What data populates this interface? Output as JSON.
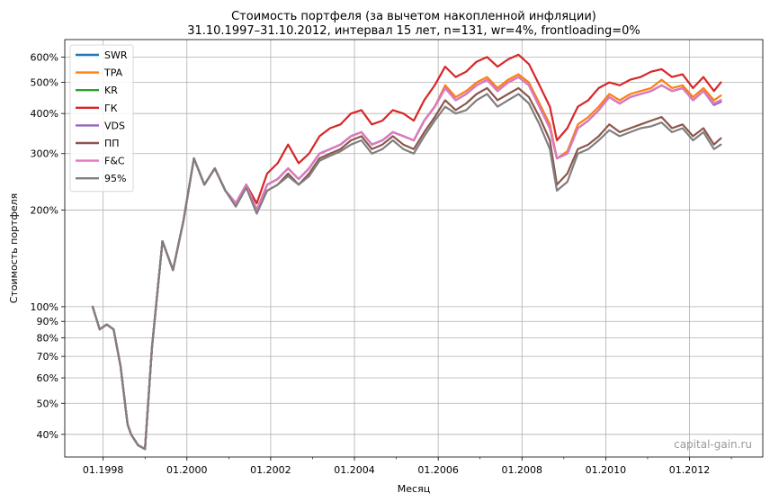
{
  "chart_data": {
    "type": "line",
    "title": "Стоимость портфеля (за вычетом накопленной инфляции)",
    "subtitle": "31.10.1997–31.10.2012, интервал 15 лет, n=131, wr=4%, frontloading=0%",
    "xlabel": "Месяц",
    "ylabel": "Стоимость портфеля",
    "y_scale": "log",
    "xlim": [
      "1997-02",
      "2013-10"
    ],
    "x_ticks": [
      "01.1998",
      "01.2000",
      "01.2002",
      "01.2004",
      "01.2006",
      "01.2008",
      "01.2010",
      "01.2012"
    ],
    "y_ticks": [
      "40%",
      "50%",
      "60%",
      "70%",
      "80%",
      "90%",
      "100%",
      "200%",
      "300%",
      "400%",
      "500%",
      "600%"
    ],
    "grid": true,
    "legend_position": "top-left",
    "watermark": "capital-gain.ru",
    "dates": [
      "1997-10",
      "1997-12",
      "1998-02",
      "1998-04",
      "1998-06",
      "1998-08",
      "1998-09",
      "1998-11",
      "1999-01",
      "1999-03",
      "1999-06",
      "1999-09",
      "1999-12",
      "2000-03",
      "2000-06",
      "2000-09",
      "2000-12",
      "2001-03",
      "2001-06",
      "2001-09",
      "2001-12",
      "2002-03",
      "2002-06",
      "2002-09",
      "2002-12",
      "2003-03",
      "2003-06",
      "2003-09",
      "2003-12",
      "2004-03",
      "2004-06",
      "2004-09",
      "2004-12",
      "2005-03",
      "2005-06",
      "2005-09",
      "2005-12",
      "2006-03",
      "2006-06",
      "2006-09",
      "2006-12",
      "2007-03",
      "2007-06",
      "2007-09",
      "2007-12",
      "2008-03",
      "2008-06",
      "2008-09",
      "2008-11",
      "2009-02",
      "2009-05",
      "2009-08",
      "2009-11",
      "2010-02",
      "2010-05",
      "2010-08",
      "2010-11",
      "2011-02",
      "2011-05",
      "2011-08",
      "2011-11",
      "2012-02",
      "2012-05",
      "2012-08",
      "2012-10"
    ],
    "series": [
      {
        "name": "SWR",
        "color": "#1f77b4",
        "values": [
          100,
          85,
          88,
          85,
          65,
          43,
          40,
          37,
          36,
          75,
          160,
          130,
          185,
          290,
          240,
          270,
          230,
          210,
          240,
          200,
          240,
          250,
          270,
          250,
          270,
          300,
          310,
          320,
          340,
          350,
          320,
          330,
          350,
          340,
          330,
          380,
          420,
          480,
          440,
          460,
          490,
          510,
          470,
          500,
          520,
          490,
          420,
          360,
          290,
          300,
          360,
          380,
          410,
          450,
          430,
          450,
          460,
          470,
          490,
          470,
          480,
          440,
          470,
          430,
          440
        ]
      },
      {
        "name": "TPA",
        "color": "#ff7f0e",
        "values": [
          100,
          85,
          88,
          85,
          65,
          43,
          40,
          37,
          36,
          75,
          160,
          130,
          185,
          290,
          240,
          270,
          230,
          210,
          240,
          200,
          240,
          250,
          270,
          250,
          270,
          300,
          310,
          320,
          340,
          350,
          320,
          330,
          350,
          340,
          330,
          380,
          420,
          490,
          450,
          470,
          500,
          520,
          480,
          510,
          530,
          500,
          430,
          370,
          290,
          305,
          370,
          390,
          420,
          460,
          440,
          460,
          470,
          480,
          510,
          480,
          490,
          450,
          480,
          440,
          455
        ]
      },
      {
        "name": "KR",
        "color": "#2ca02c",
        "values": [
          100,
          85,
          88,
          85,
          65,
          43,
          40,
          37,
          36,
          75,
          160,
          130,
          185,
          290,
          240,
          270,
          230,
          210,
          240,
          200,
          240,
          250,
          270,
          250,
          270,
          300,
          310,
          320,
          340,
          350,
          320,
          330,
          350,
          340,
          330,
          380,
          420,
          480,
          440,
          460,
          490,
          510,
          470,
          500,
          520,
          490,
          420,
          360,
          290,
          300,
          360,
          380,
          410,
          450,
          430,
          450,
          460,
          470,
          490,
          470,
          480,
          440,
          470,
          430,
          440
        ]
      },
      {
        "name": "ГК",
        "color": "#d62728",
        "values": [
          100,
          85,
          88,
          85,
          65,
          43,
          40,
          37,
          36,
          75,
          160,
          130,
          185,
          290,
          240,
          270,
          230,
          210,
          240,
          210,
          260,
          280,
          320,
          280,
          300,
          340,
          360,
          370,
          400,
          410,
          370,
          380,
          410,
          400,
          380,
          440,
          490,
          560,
          520,
          540,
          580,
          600,
          560,
          590,
          610,
          570,
          490,
          420,
          330,
          360,
          420,
          440,
          480,
          500,
          490,
          510,
          520,
          540,
          550,
          520,
          530,
          480,
          520,
          470,
          500
        ]
      },
      {
        "name": "VDS",
        "color": "#9467bd",
        "values": [
          100,
          85,
          88,
          85,
          65,
          43,
          40,
          37,
          36,
          75,
          160,
          130,
          185,
          290,
          240,
          270,
          230,
          210,
          240,
          200,
          240,
          250,
          270,
          250,
          270,
          300,
          310,
          320,
          340,
          350,
          320,
          330,
          350,
          340,
          330,
          380,
          420,
          480,
          440,
          460,
          490,
          510,
          470,
          500,
          520,
          490,
          420,
          360,
          290,
          300,
          360,
          380,
          410,
          450,
          430,
          450,
          460,
          470,
          490,
          470,
          480,
          440,
          470,
          425,
          435
        ]
      },
      {
        "name": "ПП",
        "color": "#8c564b",
        "values": [
          100,
          85,
          88,
          85,
          65,
          43,
          40,
          37,
          36,
          75,
          160,
          130,
          185,
          290,
          240,
          270,
          230,
          210,
          240,
          200,
          230,
          240,
          260,
          240,
          260,
          290,
          300,
          310,
          330,
          340,
          310,
          320,
          340,
          320,
          310,
          350,
          390,
          440,
          410,
          430,
          460,
          480,
          440,
          460,
          480,
          450,
          390,
          330,
          240,
          260,
          310,
          320,
          340,
          370,
          350,
          360,
          370,
          380,
          390,
          360,
          370,
          340,
          360,
          320,
          335
        ]
      },
      {
        "name": "F&C",
        "color": "#e377c2",
        "values": [
          100,
          85,
          88,
          85,
          65,
          43,
          40,
          37,
          36,
          75,
          160,
          130,
          185,
          290,
          240,
          270,
          230,
          210,
          240,
          200,
          240,
          250,
          270,
          250,
          270,
          300,
          310,
          320,
          340,
          350,
          320,
          330,
          350,
          340,
          330,
          380,
          420,
          480,
          440,
          460,
          490,
          510,
          470,
          500,
          520,
          490,
          420,
          360,
          290,
          300,
          360,
          380,
          410,
          450,
          430,
          450,
          460,
          470,
          490,
          470,
          480,
          440,
          470,
          430,
          440
        ]
      },
      {
        "name": "95%",
        "color": "#7f7f7f",
        "values": [
          100,
          85,
          88,
          85,
          65,
          43,
          40,
          37,
          36,
          75,
          160,
          130,
          185,
          290,
          240,
          270,
          230,
          205,
          235,
          195,
          230,
          240,
          255,
          240,
          255,
          285,
          295,
          305,
          320,
          330,
          300,
          310,
          330,
          310,
          300,
          340,
          380,
          420,
          400,
          410,
          440,
          460,
          420,
          440,
          460,
          430,
          370,
          310,
          230,
          245,
          300,
          310,
          330,
          355,
          340,
          350,
          360,
          365,
          375,
          350,
          360,
          330,
          350,
          310,
          320
        ]
      }
    ]
  }
}
